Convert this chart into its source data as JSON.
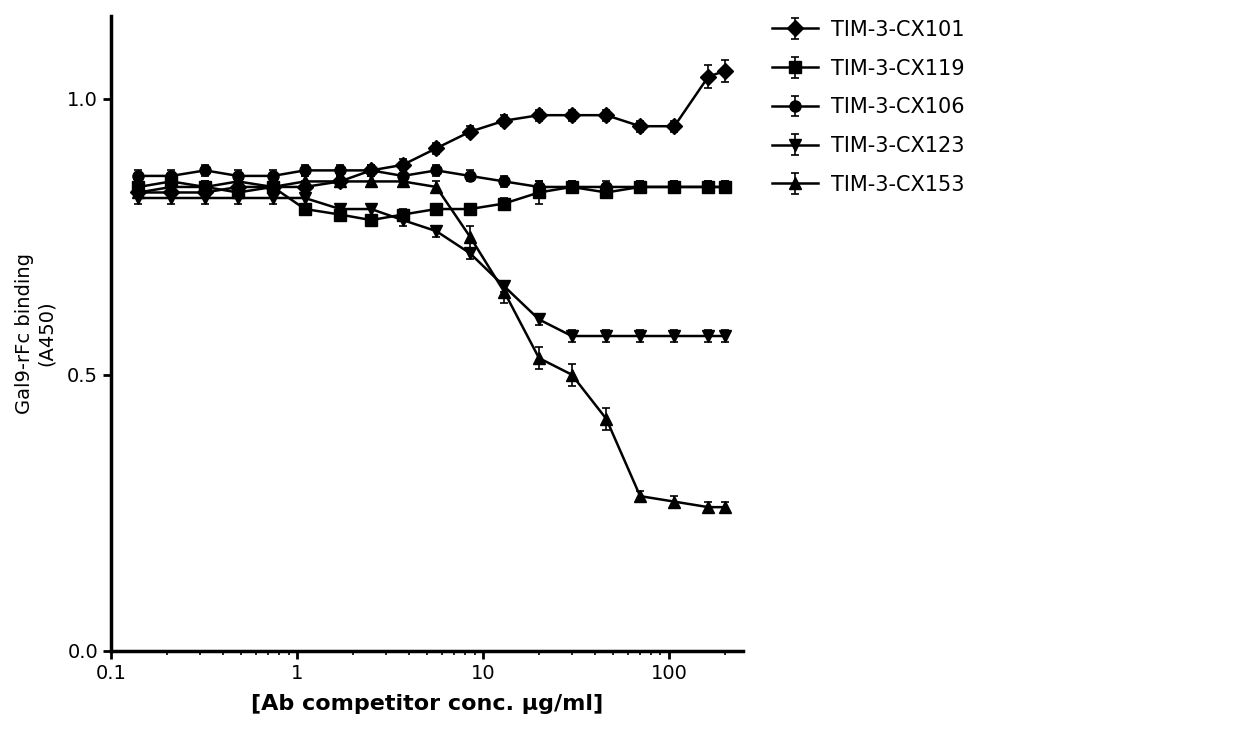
{
  "title": "",
  "xlabel": "[Ab competitor conc. μg/ml]",
  "ylabel": "Gal9-rFc binding\n(A450)",
  "xlim": [
    0.1,
    250
  ],
  "ylim": [
    0.0,
    1.15
  ],
  "yticks": [
    0.0,
    0.5,
    1.0
  ],
  "background_color": "#ffffff",
  "series": [
    {
      "label": "TIM-3-CX101",
      "marker": "D",
      "x": [
        0.14,
        0.21,
        0.32,
        0.48,
        0.74,
        1.1,
        1.7,
        2.5,
        3.7,
        5.6,
        8.5,
        13,
        20,
        30,
        46,
        70,
        107,
        163,
        200
      ],
      "y": [
        0.83,
        0.83,
        0.83,
        0.84,
        0.84,
        0.84,
        0.85,
        0.87,
        0.88,
        0.91,
        0.94,
        0.96,
        0.97,
        0.97,
        0.97,
        0.95,
        0.95,
        1.04,
        1.05
      ],
      "yerr": [
        0.01,
        0.01,
        0.01,
        0.01,
        0.01,
        0.01,
        0.01,
        0.01,
        0.01,
        0.01,
        0.01,
        0.01,
        0.01,
        0.01,
        0.01,
        0.01,
        0.01,
        0.02,
        0.02
      ]
    },
    {
      "label": "TIM-3-CX119",
      "marker": "s",
      "x": [
        0.14,
        0.21,
        0.32,
        0.48,
        0.74,
        1.1,
        1.7,
        2.5,
        3.7,
        5.6,
        8.5,
        13,
        20,
        30,
        46,
        70,
        107,
        163,
        200
      ],
      "y": [
        0.84,
        0.85,
        0.84,
        0.83,
        0.84,
        0.8,
        0.79,
        0.78,
        0.79,
        0.8,
        0.8,
        0.81,
        0.83,
        0.84,
        0.83,
        0.84,
        0.84,
        0.84,
        0.84
      ],
      "yerr": [
        0.01,
        0.01,
        0.01,
        0.01,
        0.01,
        0.01,
        0.01,
        0.01,
        0.01,
        0.01,
        0.01,
        0.01,
        0.02,
        0.01,
        0.01,
        0.01,
        0.01,
        0.01,
        0.01
      ]
    },
    {
      "label": "TIM-3-CX106",
      "marker": "o",
      "x": [
        0.14,
        0.21,
        0.32,
        0.48,
        0.74,
        1.1,
        1.7,
        2.5,
        3.7,
        5.6,
        8.5,
        13,
        20,
        30,
        46,
        70,
        107,
        163,
        200
      ],
      "y": [
        0.86,
        0.86,
        0.87,
        0.86,
        0.86,
        0.87,
        0.87,
        0.87,
        0.86,
        0.87,
        0.86,
        0.85,
        0.84,
        0.84,
        0.84,
        0.84,
        0.84,
        0.84,
        0.84
      ],
      "yerr": [
        0.01,
        0.01,
        0.01,
        0.01,
        0.01,
        0.01,
        0.01,
        0.01,
        0.01,
        0.01,
        0.01,
        0.01,
        0.01,
        0.01,
        0.01,
        0.01,
        0.01,
        0.01,
        0.01
      ]
    },
    {
      "label": "TIM-3-CX123",
      "marker": "v",
      "x": [
        0.14,
        0.21,
        0.32,
        0.48,
        0.74,
        1.1,
        1.7,
        2.5,
        3.7,
        5.6,
        8.5,
        13,
        20,
        30,
        46,
        70,
        107,
        163,
        200
      ],
      "y": [
        0.82,
        0.82,
        0.82,
        0.82,
        0.82,
        0.82,
        0.8,
        0.8,
        0.78,
        0.76,
        0.72,
        0.66,
        0.6,
        0.57,
        0.57,
        0.57,
        0.57,
        0.57,
        0.57
      ],
      "yerr": [
        0.01,
        0.01,
        0.01,
        0.01,
        0.01,
        0.01,
        0.01,
        0.01,
        0.01,
        0.01,
        0.01,
        0.01,
        0.01,
        0.01,
        0.01,
        0.01,
        0.01,
        0.01,
        0.01
      ]
    },
    {
      "label": "TIM-3-CX153",
      "marker": "^",
      "x": [
        0.14,
        0.21,
        0.32,
        0.48,
        0.74,
        1.1,
        1.7,
        2.5,
        3.7,
        5.6,
        8.5,
        13,
        20,
        30,
        46,
        70,
        107,
        163,
        200
      ],
      "y": [
        0.83,
        0.84,
        0.84,
        0.85,
        0.84,
        0.85,
        0.85,
        0.85,
        0.85,
        0.84,
        0.75,
        0.65,
        0.53,
        0.5,
        0.42,
        0.28,
        0.27,
        0.26,
        0.26
      ],
      "yerr": [
        0.01,
        0.01,
        0.01,
        0.01,
        0.01,
        0.01,
        0.01,
        0.01,
        0.01,
        0.01,
        0.02,
        0.02,
        0.02,
        0.02,
        0.02,
        0.01,
        0.01,
        0.01,
        0.01
      ]
    }
  ],
  "legend_fontsize": 15,
  "axis_fontsize": 16,
  "tick_fontsize": 14,
  "markersize": 8,
  "linewidth": 1.8,
  "capsize": 3,
  "spine_linewidth": 2.5
}
